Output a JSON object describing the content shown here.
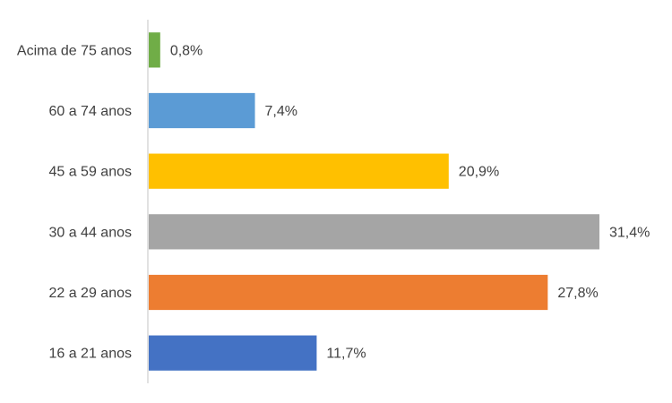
{
  "chart_data": {
    "type": "bar",
    "orientation": "horizontal",
    "categories": [
      "Acima de 75 anos",
      "60 a 74 anos",
      "45 a 59 anos",
      "30 a 44 anos",
      "22 a 29 anos",
      "16 a 21 anos"
    ],
    "values": [
      0.8,
      7.4,
      20.9,
      31.4,
      27.8,
      11.7
    ],
    "data_labels": [
      "0,8%",
      "7,4%",
      "20,9%",
      "31,4%",
      "27,8%",
      "11,7%"
    ],
    "colors": [
      "#70AD47",
      "#5B9BD5",
      "#FFC000",
      "#A5A5A5",
      "#ED7D31",
      "#4472C4"
    ],
    "xlim": [
      0,
      32
    ],
    "grid": false,
    "legend": "none"
  }
}
